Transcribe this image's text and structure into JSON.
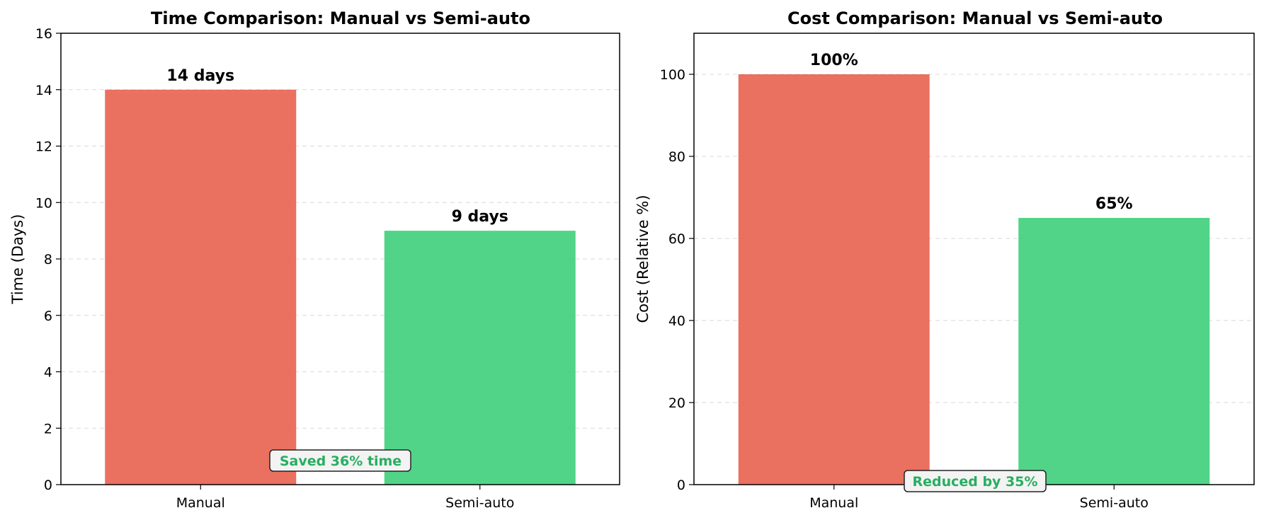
{
  "chart_data": [
    {
      "type": "bar",
      "title": "Time Comparison: Manual vs Semi-auto",
      "xlabel": "",
      "ylabel": "Time (Days)",
      "categories": [
        "Manual",
        "Semi-auto"
      ],
      "values": [
        14,
        9
      ],
      "value_labels": [
        "14 days",
        "9 days"
      ],
      "colors": [
        "#e8604f",
        "#3ecf7a"
      ],
      "ylim": [
        0,
        16
      ],
      "yticks": [
        0,
        2,
        4,
        6,
        8,
        10,
        12,
        14,
        16
      ],
      "grid": true,
      "annotation": {
        "text": "Saved 36% time",
        "color": "#27ae60"
      }
    },
    {
      "type": "bar",
      "title": "Cost Comparison: Manual vs Semi-auto",
      "xlabel": "",
      "ylabel": "Cost (Relative %)",
      "categories": [
        "Manual",
        "Semi-auto"
      ],
      "values": [
        100,
        65
      ],
      "value_labels": [
        "100%",
        "65%"
      ],
      "colors": [
        "#e8604f",
        "#3ecf7a"
      ],
      "ylim": [
        0,
        110
      ],
      "yticks": [
        0,
        20,
        40,
        60,
        80,
        100
      ],
      "grid": true,
      "annotation": {
        "text": "Reduced by 35%",
        "color": "#27ae60"
      }
    }
  ]
}
